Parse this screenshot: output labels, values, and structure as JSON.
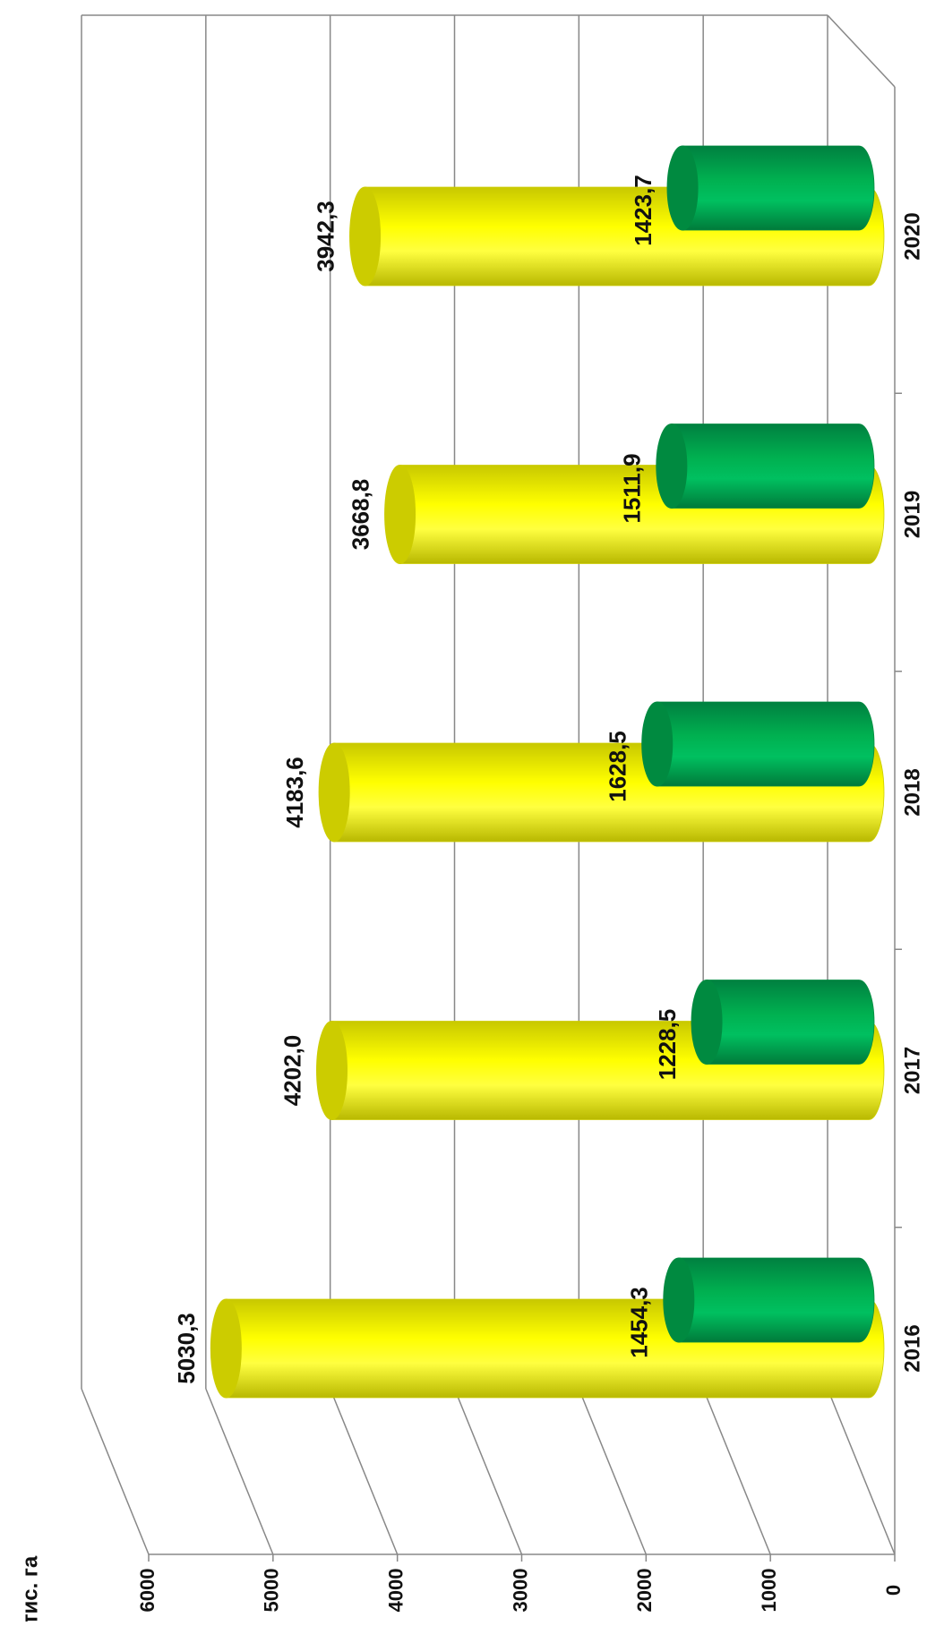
{
  "chart_data": {
    "type": "bar",
    "title": "тис. га",
    "categories": [
      "2016",
      "2017",
      "2018",
      "2019",
      "2020"
    ],
    "series": [
      {
        "color": "#ffff00",
        "values": [
          5030.3,
          4202.0,
          4183.6,
          3668.8,
          3942.3
        ],
        "value_labels": [
          "5030,3",
          "4202,0",
          "4183,6",
          "3668,8",
          "3942,3"
        ]
      },
      {
        "color": "#00b050",
        "values": [
          1454.3,
          1228.5,
          1628.5,
          1511.9,
          1423.7
        ],
        "value_labels": [
          "1454,3",
          "1228,5",
          "1628,5",
          "1511,9",
          "1423,7"
        ]
      }
    ],
    "ylim": [
      0,
      6000
    ],
    "yticks": [
      0,
      1000,
      2000,
      3000,
      4000,
      5000,
      6000
    ],
    "grid": true
  }
}
